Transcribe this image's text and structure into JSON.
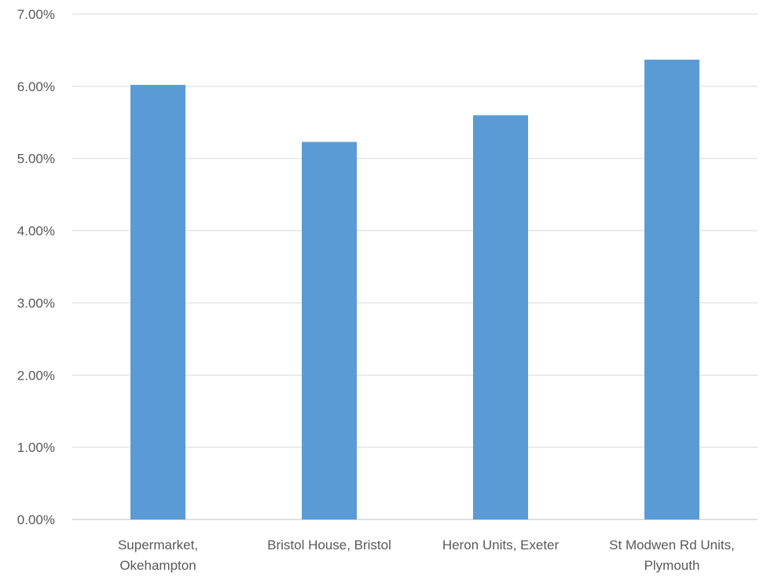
{
  "chart_data": {
    "type": "bar",
    "categories": [
      [
        "Supermarket,",
        "Okehampton"
      ],
      [
        "Bristol House, Bristol"
      ],
      [
        "Heron Units, Exeter"
      ],
      [
        "St Modwen Rd Units,",
        "Plymouth"
      ]
    ],
    "values": [
      6.02,
      5.23,
      5.6,
      6.37
    ],
    "ylim": [
      0,
      7
    ],
    "yticks": [
      "0.00%",
      "1.00%",
      "2.00%",
      "3.00%",
      "4.00%",
      "5.00%",
      "6.00%",
      "7.00%"
    ],
    "title": "",
    "xlabel": "",
    "ylabel": "",
    "grid": true,
    "legend": "none",
    "colors": {
      "bar": "#5b9bd5"
    }
  }
}
